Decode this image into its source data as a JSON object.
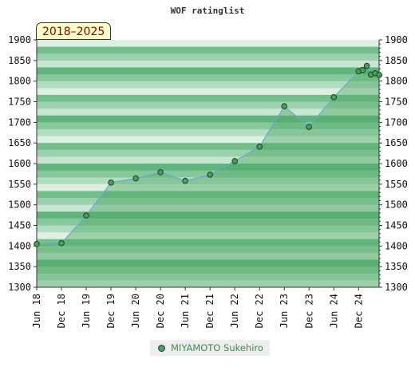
{
  "chart_data": {
    "type": "area",
    "title": "WOF ratinglist",
    "period_label": "2018–2025",
    "y_ticks": [
      1300,
      1350,
      1400,
      1450,
      1500,
      1550,
      1600,
      1650,
      1700,
      1750,
      1800,
      1850,
      1900
    ],
    "ylim": [
      1300,
      1900
    ],
    "x_ticks": [
      "Jun 18",
      "Dec 18",
      "Jun 19",
      "Dec 19",
      "Jun 20",
      "Dec 20",
      "Jun 21",
      "Dec 21",
      "Jun 22",
      "Dec 22",
      "Jun 23",
      "Dec 23",
      "Jun 24",
      "Dec 24"
    ],
    "xlim": [
      "2018-06",
      "2025-04"
    ],
    "legend_position": "bottom-center",
    "series": [
      {
        "name": "MIYAMOTO Sukehiro",
        "color": "#4d9e5c",
        "points": [
          {
            "x": "2018-06",
            "y": 1405
          },
          {
            "x": "2018-12",
            "y": 1407
          },
          {
            "x": "2019-06",
            "y": 1474
          },
          {
            "x": "2019-12",
            "y": 1554
          },
          {
            "x": "2020-06",
            "y": 1564
          },
          {
            "x": "2020-12",
            "y": 1579
          },
          {
            "x": "2021-06",
            "y": 1558
          },
          {
            "x": "2021-12",
            "y": 1573
          },
          {
            "x": "2022-06",
            "y": 1606
          },
          {
            "x": "2022-12",
            "y": 1641
          },
          {
            "x": "2023-06",
            "y": 1739
          },
          {
            "x": "2023-12",
            "y": 1689
          },
          {
            "x": "2024-06",
            "y": 1761
          },
          {
            "x": "2024-12",
            "y": 1824
          },
          {
            "x": "2025-01",
            "y": 1827
          },
          {
            "x": "2025-02",
            "y": 1837
          },
          {
            "x": "2025-03",
            "y": 1816
          },
          {
            "x": "2025-04",
            "y": 1819
          },
          {
            "x": "2025-05",
            "y": 1815
          }
        ]
      }
    ]
  }
}
